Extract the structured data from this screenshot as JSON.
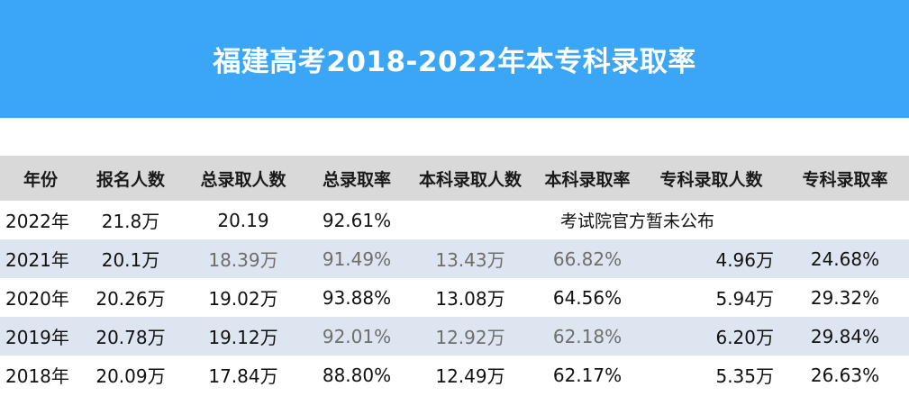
{
  "title": "福建高考2018-2022年本专科录取率",
  "table": {
    "headers": [
      "年份",
      "报名人数",
      "总录取人数",
      "总录取率",
      "本科录取人数",
      "本科录取率",
      "专科录取人数",
      "专科录取率"
    ],
    "row2022": {
      "year": "2022年",
      "applicants": "21.8万",
      "total_admitted": "20.19",
      "total_rate": "92.61%",
      "notice": "考试院官方暂未公布"
    },
    "rows": [
      [
        "2021年",
        "20.1万",
        "18.39万",
        "91.49%",
        "13.43万",
        "66.82%",
        "4.96万",
        "24.68%"
      ],
      [
        "2020年",
        "20.26万",
        "19.02万",
        "93.88%",
        "13.08万",
        "64.56%",
        "5.94万",
        "29.32%"
      ],
      [
        "2019年",
        "20.78万",
        "19.12万",
        "92.01%",
        "12.92万",
        "62.18%",
        "6.20万",
        "29.84%"
      ],
      [
        "2018年",
        "20.09万",
        "17.84万",
        "88.80%",
        "12.49万",
        "62.17%",
        "5.35万",
        "26.63%"
      ]
    ]
  }
}
